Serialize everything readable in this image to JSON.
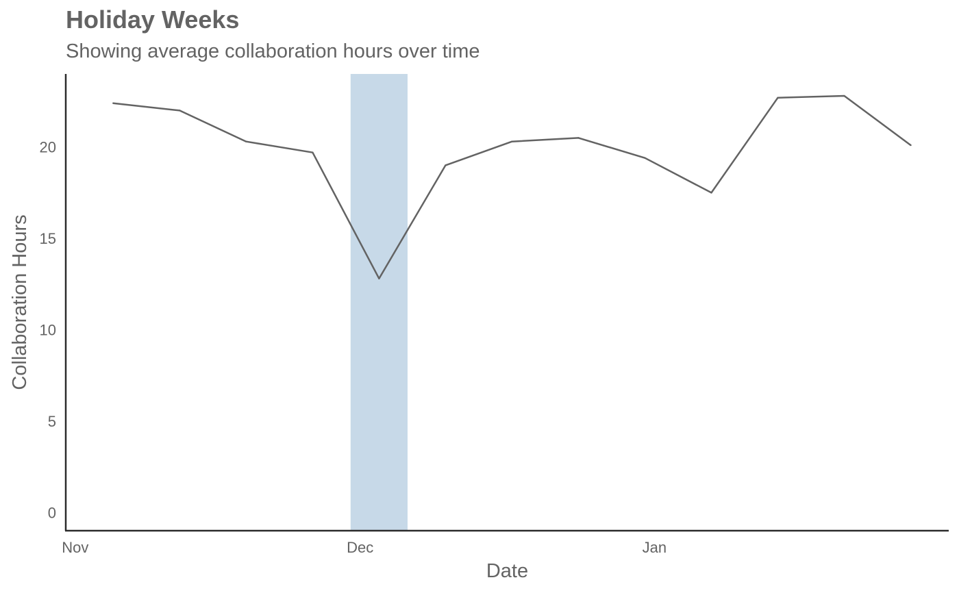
{
  "chart_data": {
    "type": "line",
    "title": "Holiday Weeks",
    "subtitle": "Showing average collaboration hours over time",
    "xlabel": "Date",
    "ylabel": "Collaboration Hours",
    "x": [
      "2023-11-05",
      "2023-11-12",
      "2023-11-19",
      "2023-11-26",
      "2023-12-03",
      "2023-12-10",
      "2023-12-17",
      "2023-12-24",
      "2023-12-31",
      "2024-01-07",
      "2024-01-14",
      "2024-01-21",
      "2024-01-28"
    ],
    "series": [
      {
        "values": [
          22.4,
          22.0,
          20.3,
          19.7,
          12.8,
          19.0,
          20.3,
          20.5,
          19.4,
          17.5,
          22.7,
          22.8,
          20.1
        ]
      }
    ],
    "x_ticks": [
      {
        "date": "2023-11-01",
        "label": "Nov"
      },
      {
        "date": "2023-12-01",
        "label": "Dec"
      },
      {
        "date": "2024-01-01",
        "label": "Jan"
      }
    ],
    "xlim": [
      "2023-10-31",
      "2024-02-01"
    ],
    "ylim": [
      -1,
      24
    ],
    "y_ticks": [
      0,
      5,
      10,
      15,
      20
    ],
    "highlight": {
      "start": "2023-11-30",
      "end": "2023-12-06"
    },
    "grid": false,
    "colors": {
      "line": "#636363",
      "highlight": "#c7d9e8",
      "axis": "#2b2b2b",
      "text": "#636363"
    }
  }
}
